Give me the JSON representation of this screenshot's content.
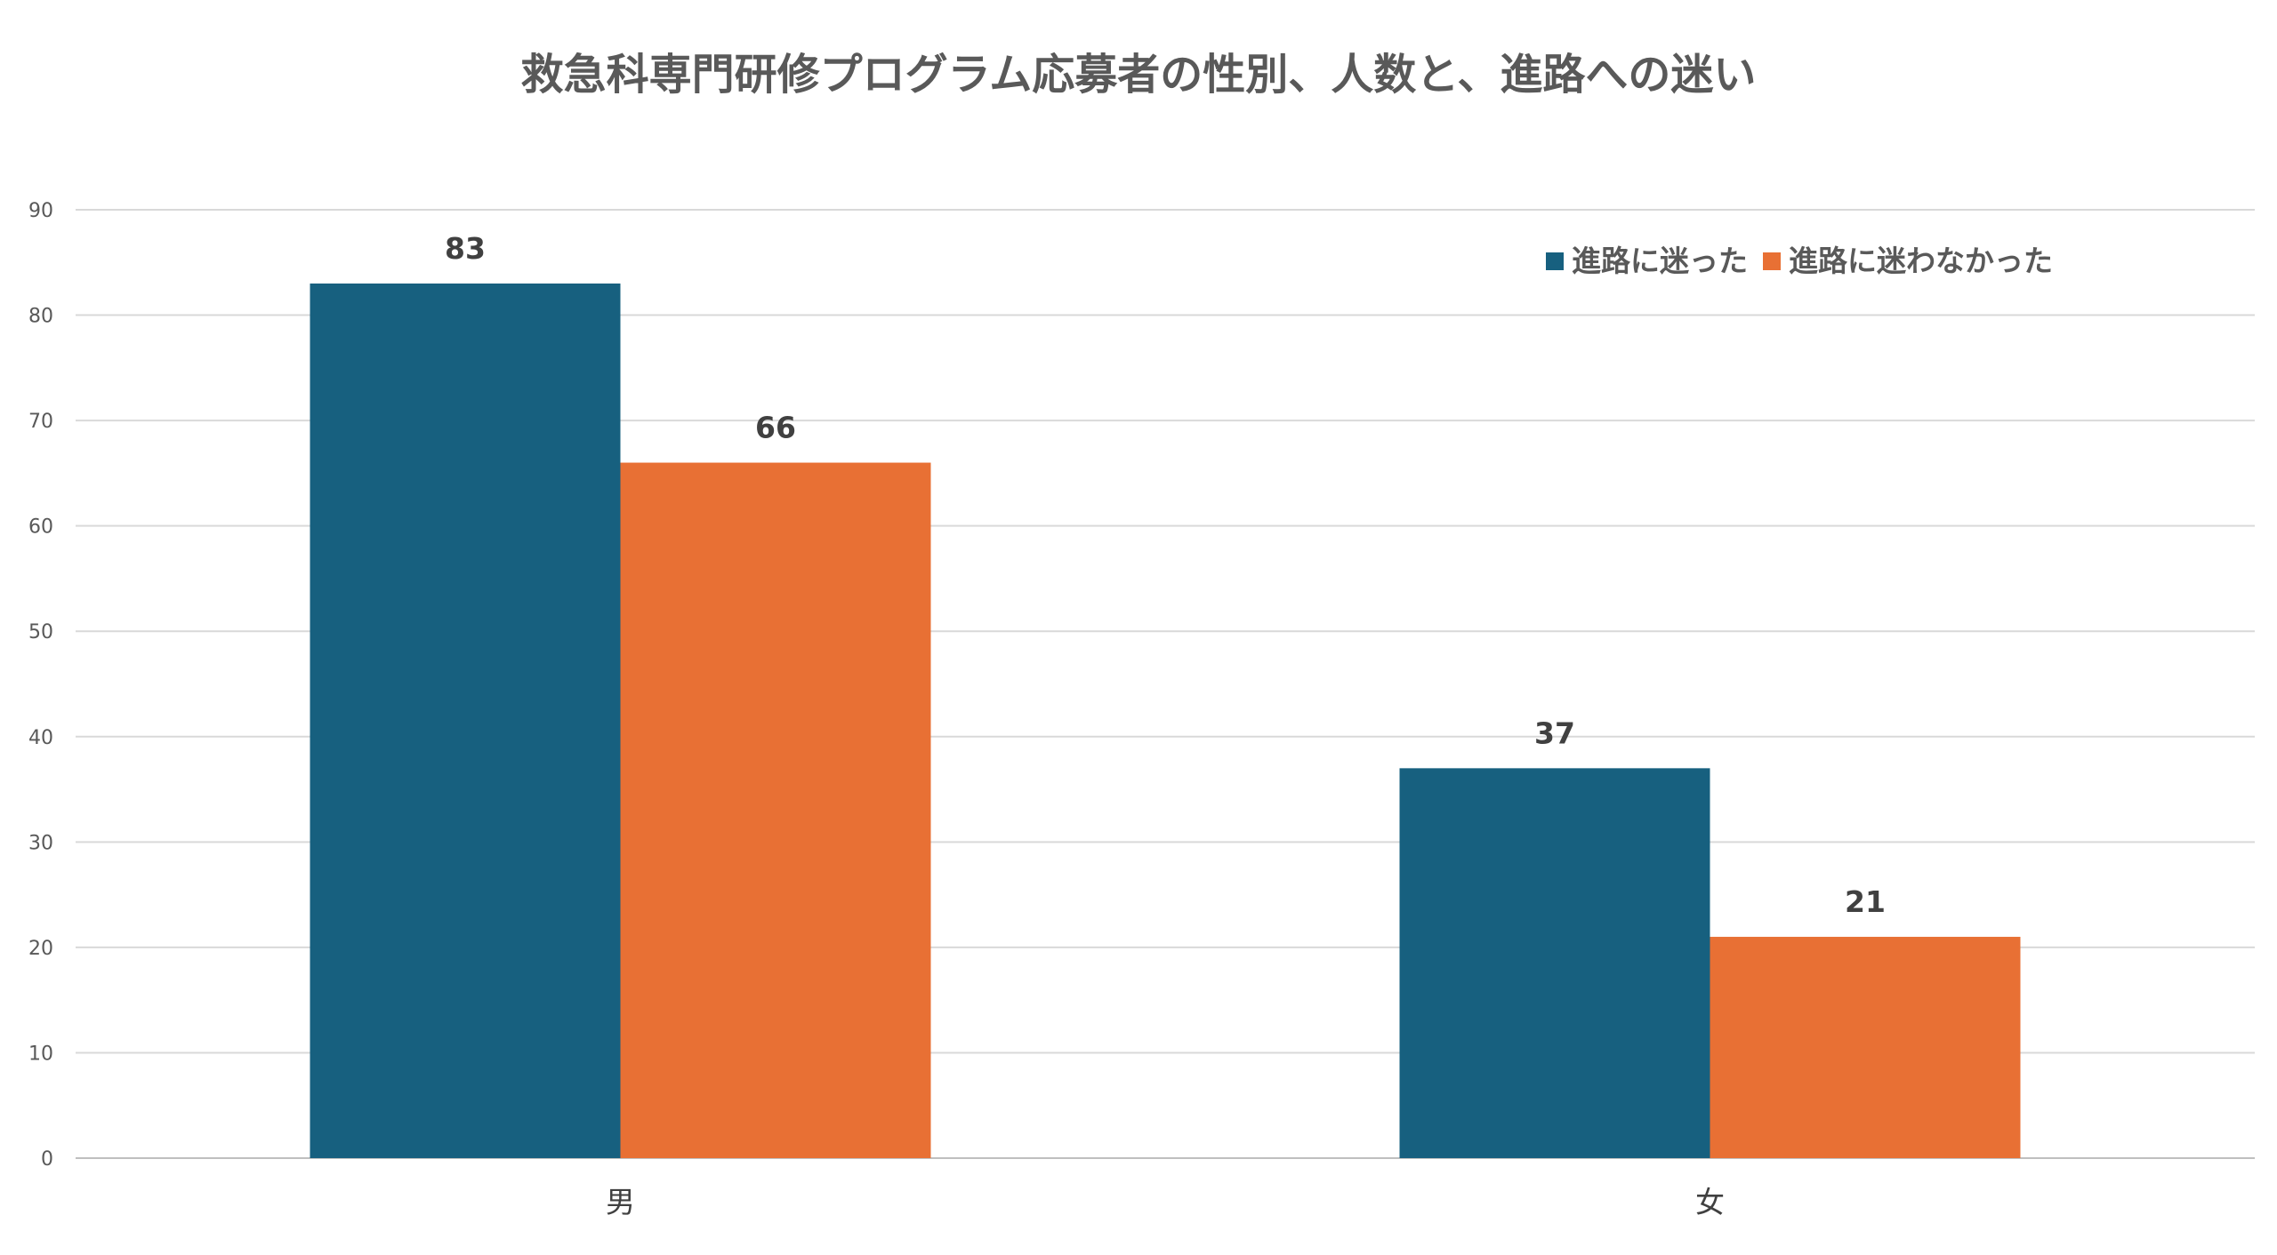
{
  "chart_data": {
    "type": "bar",
    "title": "救急科専門研修プログラム応募者の性別、人数と、進路への迷い",
    "xlabel": "",
    "ylabel": "",
    "categories": [
      "男",
      "女"
    ],
    "series": [
      {
        "name": "進路に迷った",
        "values": [
          83,
          37
        ],
        "color": "#17607f"
      },
      {
        "name": "進路に迷わなかった",
        "values": [
          66,
          21
        ],
        "color": "#e87034"
      }
    ],
    "ylim": [
      0,
      90
    ],
    "yticks": [
      0,
      10,
      20,
      30,
      40,
      50,
      60,
      70,
      80,
      90
    ],
    "grid": true,
    "legend_position": "top-right",
    "data_labels": true
  }
}
